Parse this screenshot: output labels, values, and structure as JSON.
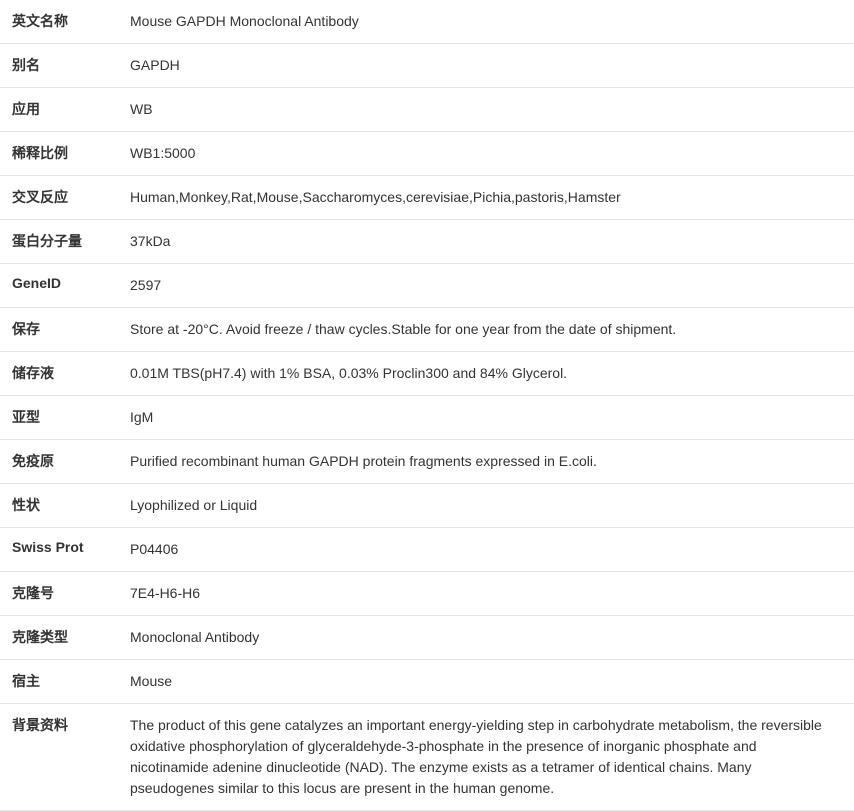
{
  "table": {
    "label_width": 130,
    "font_size": 14,
    "label_font_weight": "bold",
    "border_color": "#e5e5e5",
    "text_color": "#333333",
    "background_color": "#ffffff",
    "row_padding_v": 11,
    "rows": [
      {
        "label": "英文名称",
        "value": "Mouse GAPDH Monoclonal Antibody"
      },
      {
        "label": "别名",
        "value": "GAPDH"
      },
      {
        "label": "应用",
        "value": "WB"
      },
      {
        "label": "稀释比例",
        "value": "WB1:5000"
      },
      {
        "label": "交叉反应",
        "value": "Human,Monkey,Rat,Mouse,Saccharomyces,cerevisiae,Pichia,pastoris,Hamster"
      },
      {
        "label": "蛋白分子量",
        "value": "37kDa"
      },
      {
        "label": "GeneID",
        "value": "2597"
      },
      {
        "label": "保存",
        "value": "Store at -20°C. Avoid freeze / thaw cycles.Stable for one year from the date of shipment."
      },
      {
        "label": "储存液",
        "value": "0.01M TBS(pH7.4) with 1% BSA, 0.03% Proclin300 and 84% Glycerol."
      },
      {
        "label": "亚型",
        "value": "IgM"
      },
      {
        "label": "免疫原",
        "value": "Purified recombinant human GAPDH protein fragments expressed in E.coli."
      },
      {
        "label": "性状",
        "value": "Lyophilized or Liquid"
      },
      {
        "label": "Swiss Prot",
        "value": "P04406"
      },
      {
        "label": "克隆号",
        "value": "7E4-H6-H6"
      },
      {
        "label": "克隆类型",
        "value": "Monoclonal Antibody"
      },
      {
        "label": "宿主",
        "value": "Mouse"
      },
      {
        "label": "背景资料",
        "value": "The product of this gene catalyzes an important energy-yielding step in carbohydrate metabolism, the reversible oxidative phosphorylation of glyceraldehyde-3-phosphate in the presence of inorganic phosphate and nicotinamide adenine dinucleotide (NAD). The enzyme exists as a tetramer of identical chains. Many pseudogenes similar to this locus are present in the human genome."
      }
    ]
  }
}
